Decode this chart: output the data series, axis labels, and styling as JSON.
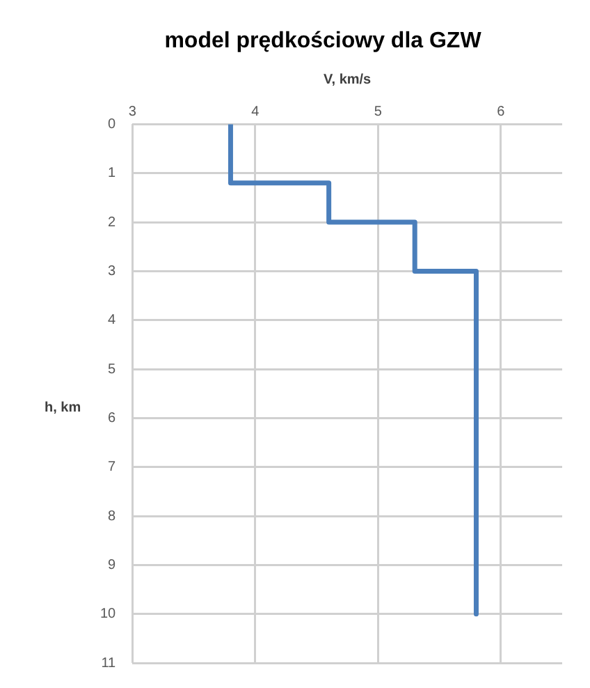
{
  "chart_data": {
    "type": "line",
    "title": "model prędkościowy dla GZW",
    "xlabel": "V, km/s",
    "ylabel": "h, km",
    "x": [
      3.8,
      3.8,
      4.6,
      4.6,
      5.3,
      5.3,
      5.8,
      5.8
    ],
    "series": [
      {
        "color": "#4a7ebb",
        "values": [
          0,
          1.2,
          1.2,
          2,
          2,
          3,
          3,
          10
        ]
      }
    ],
    "xlim": [
      3,
      6.5
    ],
    "xticks": [
      3,
      4,
      5,
      6
    ],
    "ylim": [
      11,
      0
    ],
    "yticks": [
      0,
      1,
      2,
      3,
      4,
      5,
      6,
      7,
      8,
      9,
      10,
      11
    ],
    "grid": true,
    "legend": false,
    "marker": "none",
    "line_style": "solid"
  }
}
